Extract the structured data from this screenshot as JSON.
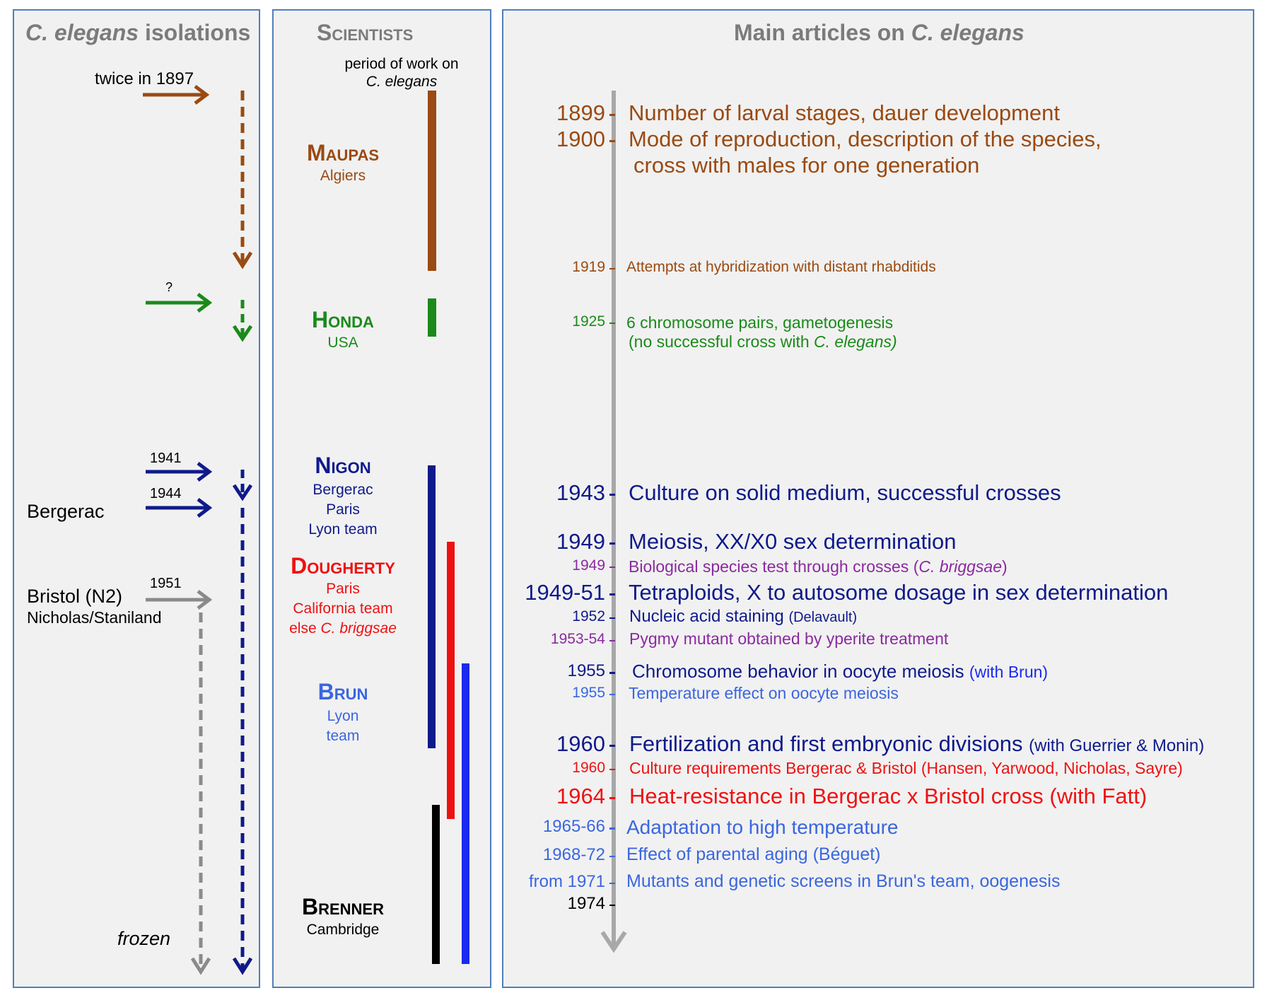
{
  "panels": {
    "isolations_title_italic": "C. elegans",
    "isolations_title_rest": " isolations",
    "scientists_title": "Scientists",
    "articles_title_pre": "Main articles on ",
    "articles_title_italic": "C. elegans"
  },
  "isolations": {
    "twice_1897": "twice in 1897",
    "question": "?",
    "y1941": "1941",
    "y1944": "1944",
    "bergerac": "Bergerac",
    "y1951": "1951",
    "bristol": "Bristol (N2)",
    "nicholas": "Nicholas/Staniland",
    "frozen": "frozen"
  },
  "scientists": {
    "period_line1": "period of work on",
    "period_line2": "C. elegans",
    "maupas": {
      "name": "Maupas",
      "place": "Algiers"
    },
    "honda": {
      "name": "Honda",
      "place": "USA"
    },
    "nigon": {
      "name": "Nigon",
      "l1": "Bergerac",
      "l2": "Paris",
      "l3": "Lyon team"
    },
    "dougherty": {
      "name": "Dougherty",
      "l1": "Paris",
      "l2": "California team",
      "l3_pre": "else ",
      "l3_it": "C. briggsae"
    },
    "brun": {
      "name": "Brun",
      "l1": "Lyon",
      "l2": "team"
    },
    "brenner": {
      "name": "Brenner",
      "l1": "Cambridge"
    }
  },
  "colors": {
    "maupas": "#9a4a12",
    "honda": "#1a8a1a",
    "nigon": "#0f1a8a",
    "dougherty": "#ee1111",
    "brun": "#3a66e0",
    "purple": "#8a2aa0",
    "gray": "#8a8a8a"
  },
  "articles": {
    "a1899": {
      "year": "1899",
      "text": "Number of larval stages, dauer development"
    },
    "a1900": {
      "year": "1900",
      "text": "Mode of reproduction, description of the species,",
      "text2": "cross with males for one generation"
    },
    "a1919": {
      "year": "1919",
      "text": "Attempts at hybridization with distant rhabditids"
    },
    "a1925": {
      "year": "1925",
      "text": "6 chromosome pairs, gametogenesis",
      "text2_pre": "(no successful cross with ",
      "text2_it": "C. elegans)"
    },
    "a1943": {
      "year": "1943",
      "text": "Culture on solid medium, successful crosses"
    },
    "a1949a": {
      "year": "1949",
      "text": "Meiosis, XX/X0 sex determination"
    },
    "a1949b": {
      "year": "1949",
      "text_pre": "Biological species test through crosses (",
      "text_it": "C. briggsae",
      "text_post": ")"
    },
    "a1949_51": {
      "year": "1949-51",
      "text": "Tetraploids, X to autosome dosage in sex determination"
    },
    "a1952": {
      "year": "1952",
      "text": "Nucleic acid staining",
      "note": "(Delavault)"
    },
    "a1953": {
      "year": "1953-54",
      "text": "Pygmy mutant obtained by yperite treatment"
    },
    "a1955a": {
      "year": "1955",
      "text": "Chromosome behavior in oocyte meiosis",
      "note": "(with Brun)"
    },
    "a1955b": {
      "year": "1955",
      "text": "Temperature effect on oocyte meiosis"
    },
    "a1960a": {
      "year": "1960",
      "text": "Fertilization and first embryonic divisions",
      "note": "(with Guerrier & Monin)"
    },
    "a1960b": {
      "year": "1960",
      "text": "Culture requirements Bergerac & Bristol (Hansen, Yarwood, Nicholas, Sayre)"
    },
    "a1964": {
      "year": "1964",
      "text": "Heat-resistance in Bergerac x Bristol cross (with Fatt)"
    },
    "a1965": {
      "year": "1965-66",
      "text": "Adaptation to high temperature"
    },
    "a1968": {
      "year": "1968-72",
      "text": "Effect of parental aging (Béguet)"
    },
    "a1971": {
      "year": "from 1971",
      "text": "Mutants and genetic screens in Brun's team, oogenesis"
    },
    "a1974": {
      "year": "1974"
    }
  }
}
